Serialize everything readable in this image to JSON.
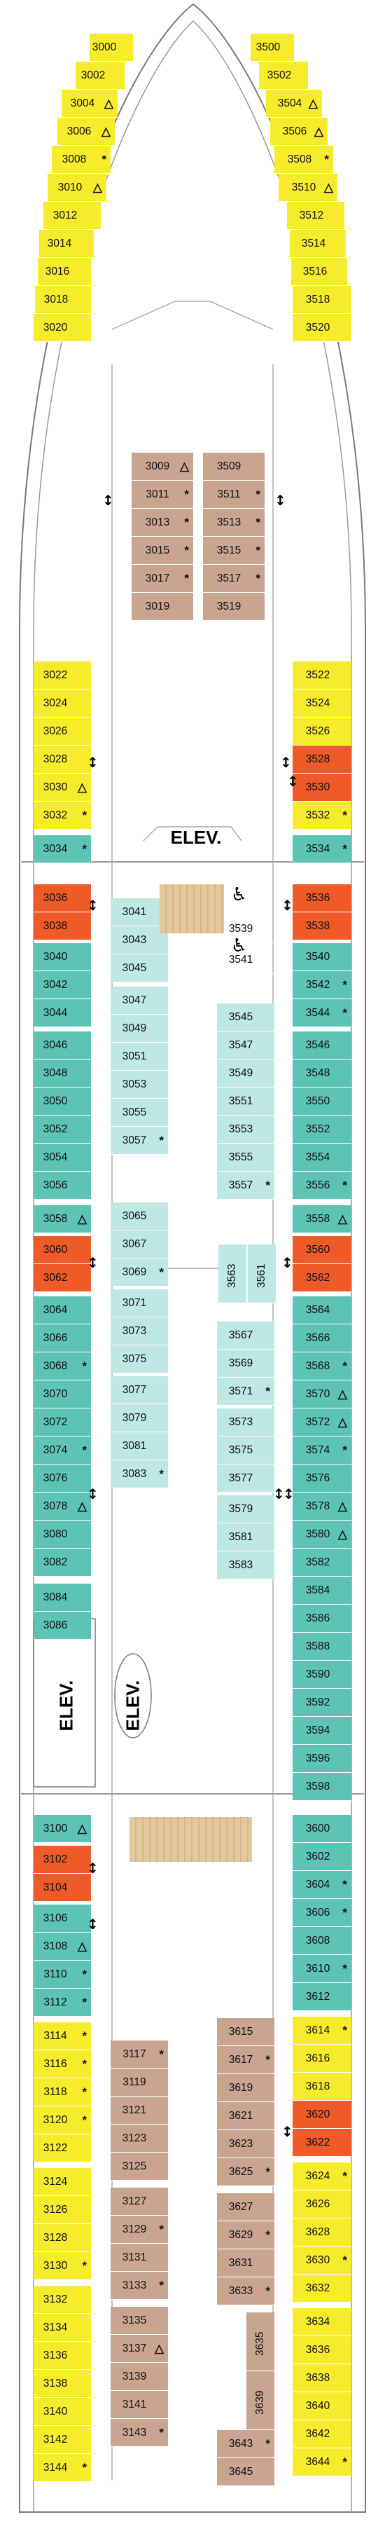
{
  "elevator_label": "ELEV.",
  "colors": {
    "yellow": "#f7ec2c",
    "teal": "#5cc3b5",
    "light_teal": "#bfe7e4",
    "orange": "#ee5a28",
    "tan": "#c9a591",
    "outline": "#7a7a7a"
  },
  "symbols": {
    "triangle": "△",
    "star": "*",
    "up_down_arrow": "↕",
    "wheelchair": "♿"
  },
  "sections": [
    {
      "name": "forward",
      "left_outer": [
        {
          "n": "3000",
          "c": "yellow"
        },
        {
          "n": "3002",
          "c": "yellow"
        },
        {
          "n": "3004",
          "c": "yellow",
          "s": "△"
        },
        {
          "n": "3006",
          "c": "yellow",
          "s": "△"
        },
        {
          "n": "3008",
          "c": "yellow",
          "s": "*"
        },
        {
          "n": "3010",
          "c": "yellow",
          "s": "△"
        },
        {
          "n": "3012",
          "c": "yellow"
        },
        {
          "n": "3014",
          "c": "yellow"
        },
        {
          "n": "3016",
          "c": "yellow"
        },
        {
          "n": "3018",
          "c": "yellow"
        },
        {
          "n": "3020",
          "c": "yellow"
        }
      ],
      "left_side": [
        {
          "n": "3022",
          "c": "yellow"
        },
        {
          "n": "3024",
          "c": "yellow"
        },
        {
          "n": "3026",
          "c": "yellow"
        },
        {
          "n": "3028",
          "c": "yellow"
        },
        {
          "n": "3030",
          "c": "yellow",
          "s": "△"
        },
        {
          "n": "3032",
          "c": "yellow",
          "s": "*"
        },
        {
          "n": "3034",
          "c": "teal",
          "s": "*"
        }
      ],
      "left_inner": [
        {
          "n": "3009",
          "c": "tan",
          "s": "△"
        },
        {
          "n": "3011",
          "c": "tan",
          "s": "*"
        },
        {
          "n": "3013",
          "c": "tan",
          "s": "*"
        },
        {
          "n": "3015",
          "c": "tan",
          "s": "*"
        },
        {
          "n": "3017",
          "c": "tan",
          "s": "*"
        },
        {
          "n": "3019",
          "c": "tan"
        }
      ],
      "right_inner": [
        {
          "n": "3509",
          "c": "tan"
        },
        {
          "n": "3511",
          "c": "tan",
          "s": "*"
        },
        {
          "n": "3513",
          "c": "tan",
          "s": "*"
        },
        {
          "n": "3515",
          "c": "tan",
          "s": "*"
        },
        {
          "n": "3517",
          "c": "tan",
          "s": "*"
        },
        {
          "n": "3519",
          "c": "tan"
        }
      ],
      "right_outer": [
        {
          "n": "3500",
          "c": "yellow"
        },
        {
          "n": "3502",
          "c": "yellow"
        },
        {
          "n": "3504",
          "c": "yellow",
          "s": "△"
        },
        {
          "n": "3506",
          "c": "yellow",
          "s": "△"
        },
        {
          "n": "3508",
          "c": "yellow",
          "s": "*"
        },
        {
          "n": "3510",
          "c": "yellow",
          "s": "△"
        },
        {
          "n": "3512",
          "c": "yellow"
        },
        {
          "n": "3514",
          "c": "yellow"
        },
        {
          "n": "3516",
          "c": "yellow"
        },
        {
          "n": "3518",
          "c": "yellow"
        },
        {
          "n": "3520",
          "c": "yellow"
        }
      ],
      "right_side": [
        {
          "n": "3522",
          "c": "yellow"
        },
        {
          "n": "3524",
          "c": "yellow"
        },
        {
          "n": "3526",
          "c": "yellow"
        },
        {
          "n": "3528",
          "c": "orange"
        },
        {
          "n": "3530",
          "c": "orange"
        },
        {
          "n": "3532",
          "c": "yellow",
          "s": "*"
        },
        {
          "n": "3534",
          "c": "teal",
          "s": "*"
        }
      ]
    },
    {
      "name": "midship-forward",
      "left_side": [
        {
          "n": "3036",
          "c": "orange"
        },
        {
          "n": "3038",
          "c": "orange"
        },
        {
          "n": "3040",
          "c": "teal"
        },
        {
          "n": "3042",
          "c": "teal"
        },
        {
          "n": "3044",
          "c": "teal"
        },
        {
          "n": "3046",
          "c": "teal"
        },
        {
          "n": "3048",
          "c": "teal"
        },
        {
          "n": "3050",
          "c": "teal"
        },
        {
          "n": "3052",
          "c": "teal"
        },
        {
          "n": "3054",
          "c": "teal"
        },
        {
          "n": "3056",
          "c": "teal"
        },
        {
          "n": "3058",
          "c": "teal",
          "s": "△"
        },
        {
          "n": "3060",
          "c": "orange"
        },
        {
          "n": "3062",
          "c": "orange"
        },
        {
          "n": "3064",
          "c": "teal"
        },
        {
          "n": "3066",
          "c": "teal"
        },
        {
          "n": "3068",
          "c": "teal",
          "s": "*"
        },
        {
          "n": "3070",
          "c": "teal"
        },
        {
          "n": "3072",
          "c": "teal"
        },
        {
          "n": "3074",
          "c": "teal",
          "s": "*"
        },
        {
          "n": "3076",
          "c": "teal"
        },
        {
          "n": "3078",
          "c": "teal",
          "s": "△"
        },
        {
          "n": "3080",
          "c": "teal"
        },
        {
          "n": "3082",
          "c": "teal"
        },
        {
          "n": "3084",
          "c": "teal"
        },
        {
          "n": "3086",
          "c": "teal"
        }
      ],
      "left_center": [
        {
          "n": "3041",
          "c": "lteal"
        },
        {
          "n": "3043",
          "c": "lteal"
        },
        {
          "n": "3045",
          "c": "lteal"
        },
        {
          "n": "3047",
          "c": "lteal"
        },
        {
          "n": "3049",
          "c": "lteal"
        },
        {
          "n": "3051",
          "c": "lteal"
        },
        {
          "n": "3053",
          "c": "lteal"
        },
        {
          "n": "3055",
          "c": "lteal"
        },
        {
          "n": "3057",
          "c": "lteal",
          "s": "*"
        },
        {
          "n": "3065",
          "c": "lteal"
        },
        {
          "n": "3067",
          "c": "lteal"
        },
        {
          "n": "3069",
          "c": "lteal",
          "s": "*"
        },
        {
          "n": "3071",
          "c": "lteal"
        },
        {
          "n": "3073",
          "c": "lteal"
        },
        {
          "n": "3075",
          "c": "lteal"
        },
        {
          "n": "3077",
          "c": "lteal"
        },
        {
          "n": "3079",
          "c": "lteal"
        },
        {
          "n": "3081",
          "c": "lteal"
        },
        {
          "n": "3083",
          "c": "lteal",
          "s": "*"
        }
      ],
      "right_center": [
        {
          "n": "3539",
          "c": "white"
        },
        {
          "n": "3541",
          "c": "white"
        },
        {
          "n": "3545",
          "c": "lteal"
        },
        {
          "n": "3547",
          "c": "lteal"
        },
        {
          "n": "3549",
          "c": "lteal"
        },
        {
          "n": "3551",
          "c": "lteal"
        },
        {
          "n": "3553",
          "c": "lteal"
        },
        {
          "n": "3555",
          "c": "lteal"
        },
        {
          "n": "3557",
          "c": "lteal",
          "s": "*"
        },
        {
          "n": "3563",
          "c": "lteal"
        },
        {
          "n": "3561",
          "c": "lteal"
        },
        {
          "n": "3567",
          "c": "lteal"
        },
        {
          "n": "3569",
          "c": "lteal"
        },
        {
          "n": "3571",
          "c": "lteal",
          "s": "*"
        },
        {
          "n": "3573",
          "c": "lteal"
        },
        {
          "n": "3575",
          "c": "lteal"
        },
        {
          "n": "3577",
          "c": "lteal"
        },
        {
          "n": "3579",
          "c": "lteal"
        },
        {
          "n": "3581",
          "c": "lteal"
        },
        {
          "n": "3583",
          "c": "lteal"
        }
      ],
      "right_side": [
        {
          "n": "3536",
          "c": "orange"
        },
        {
          "n": "3538",
          "c": "orange"
        },
        {
          "n": "3540",
          "c": "teal"
        },
        {
          "n": "3542",
          "c": "teal",
          "s": "*"
        },
        {
          "n": "3544",
          "c": "teal",
          "s": "*"
        },
        {
          "n": "3546",
          "c": "teal"
        },
        {
          "n": "3548",
          "c": "teal"
        },
        {
          "n": "3550",
          "c": "teal"
        },
        {
          "n": "3552",
          "c": "teal"
        },
        {
          "n": "3554",
          "c": "teal"
        },
        {
          "n": "3556",
          "c": "teal",
          "s": "*"
        },
        {
          "n": "3558",
          "c": "teal",
          "s": "△"
        },
        {
          "n": "3560",
          "c": "orange"
        },
        {
          "n": "3562",
          "c": "orange"
        },
        {
          "n": "3564",
          "c": "teal"
        },
        {
          "n": "3566",
          "c": "teal"
        },
        {
          "n": "3568",
          "c": "teal",
          "s": "*"
        },
        {
          "n": "3570",
          "c": "teal",
          "s": "△"
        },
        {
          "n": "3572",
          "c": "teal",
          "s": "△"
        },
        {
          "n": "3574",
          "c": "teal",
          "s": "*"
        },
        {
          "n": "3576",
          "c": "teal"
        },
        {
          "n": "3578",
          "c": "teal",
          "s": "△"
        },
        {
          "n": "3580",
          "c": "teal",
          "s": "△"
        },
        {
          "n": "3582",
          "c": "teal"
        },
        {
          "n": "3584",
          "c": "teal"
        },
        {
          "n": "3586",
          "c": "teal"
        },
        {
          "n": "3588",
          "c": "teal"
        },
        {
          "n": "3590",
          "c": "teal"
        },
        {
          "n": "3592",
          "c": "teal"
        },
        {
          "n": "3594",
          "c": "teal"
        },
        {
          "n": "3596",
          "c": "teal"
        },
        {
          "n": "3598",
          "c": "teal"
        }
      ]
    },
    {
      "name": "aft",
      "left_side": [
        {
          "n": "3100",
          "c": "teal",
          "s": "△"
        },
        {
          "n": "3102",
          "c": "orange"
        },
        {
          "n": "3104",
          "c": "orange"
        },
        {
          "n": "3106",
          "c": "teal"
        },
        {
          "n": "3108",
          "c": "teal",
          "s": "△"
        },
        {
          "n": "3110",
          "c": "teal",
          "s": "*"
        },
        {
          "n": "3112",
          "c": "teal",
          "s": "*"
        },
        {
          "n": "3114",
          "c": "yellow",
          "s": "*"
        },
        {
          "n": "3116",
          "c": "yellow",
          "s": "*"
        },
        {
          "n": "3118",
          "c": "yellow",
          "s": "*"
        },
        {
          "n": "3120",
          "c": "yellow",
          "s": "*"
        },
        {
          "n": "3122",
          "c": "yellow"
        },
        {
          "n": "3124",
          "c": "yellow"
        },
        {
          "n": "3126",
          "c": "yellow"
        },
        {
          "n": "3128",
          "c": "yellow"
        },
        {
          "n": "3130",
          "c": "yellow",
          "s": "*"
        },
        {
          "n": "3132",
          "c": "yellow"
        },
        {
          "n": "3134",
          "c": "yellow"
        },
        {
          "n": "3136",
          "c": "yellow"
        },
        {
          "n": "3138",
          "c": "yellow"
        },
        {
          "n": "3140",
          "c": "yellow"
        },
        {
          "n": "3142",
          "c": "yellow"
        },
        {
          "n": "3144",
          "c": "yellow",
          "s": "*"
        }
      ],
      "left_center": [
        {
          "n": "3117",
          "c": "tan",
          "s": "*"
        },
        {
          "n": "3119",
          "c": "tan"
        },
        {
          "n": "3121",
          "c": "tan"
        },
        {
          "n": "3123",
          "c": "tan"
        },
        {
          "n": "3125",
          "c": "tan"
        },
        {
          "n": "3127",
          "c": "tan"
        },
        {
          "n": "3129",
          "c": "tan",
          "s": "*"
        },
        {
          "n": "3131",
          "c": "tan"
        },
        {
          "n": "3133",
          "c": "tan",
          "s": "*"
        },
        {
          "n": "3135",
          "c": "tan"
        },
        {
          "n": "3137",
          "c": "tan",
          "s": "△"
        },
        {
          "n": "3139",
          "c": "tan"
        },
        {
          "n": "3141",
          "c": "tan"
        },
        {
          "n": "3143",
          "c": "tan",
          "s": "*"
        }
      ],
      "right_center": [
        {
          "n": "3615",
          "c": "tan"
        },
        {
          "n": "3617",
          "c": "tan",
          "s": "*"
        },
        {
          "n": "3619",
          "c": "tan"
        },
        {
          "n": "3621",
          "c": "tan"
        },
        {
          "n": "3623",
          "c": "tan"
        },
        {
          "n": "3625",
          "c": "tan",
          "s": "*"
        },
        {
          "n": "3627",
          "c": "tan"
        },
        {
          "n": "3629",
          "c": "tan",
          "s": "*"
        },
        {
          "n": "3631",
          "c": "tan"
        },
        {
          "n": "3633",
          "c": "tan",
          "s": "*"
        },
        {
          "n": "3635",
          "c": "tan"
        },
        {
          "n": "3639",
          "c": "tan"
        },
        {
          "n": "3643",
          "c": "tan",
          "s": "*"
        },
        {
          "n": "3645",
          "c": "tan"
        }
      ],
      "right_side": [
        {
          "n": "3600",
          "c": "teal"
        },
        {
          "n": "3602",
          "c": "teal"
        },
        {
          "n": "3604",
          "c": "teal",
          "s": "*"
        },
        {
          "n": "3606",
          "c": "teal",
          "s": "*"
        },
        {
          "n": "3608",
          "c": "teal"
        },
        {
          "n": "3610",
          "c": "teal",
          "s": "*"
        },
        {
          "n": "3612",
          "c": "teal"
        },
        {
          "n": "3614",
          "c": "yellow",
          "s": "*"
        },
        {
          "n": "3616",
          "c": "yellow"
        },
        {
          "n": "3618",
          "c": "yellow"
        },
        {
          "n": "3620",
          "c": "orange"
        },
        {
          "n": "3622",
          "c": "orange"
        },
        {
          "n": "3624",
          "c": "yellow",
          "s": "*"
        },
        {
          "n": "3626",
          "c": "yellow"
        },
        {
          "n": "3628",
          "c": "yellow"
        },
        {
          "n": "3630",
          "c": "yellow",
          "s": "*"
        },
        {
          "n": "3632",
          "c": "yellow"
        },
        {
          "n": "3634",
          "c": "yellow"
        },
        {
          "n": "3636",
          "c": "yellow"
        },
        {
          "n": "3638",
          "c": "yellow"
        },
        {
          "n": "3640",
          "c": "yellow"
        },
        {
          "n": "3642",
          "c": "yellow"
        },
        {
          "n": "3644",
          "c": "yellow",
          "s": "*"
        }
      ]
    }
  ]
}
